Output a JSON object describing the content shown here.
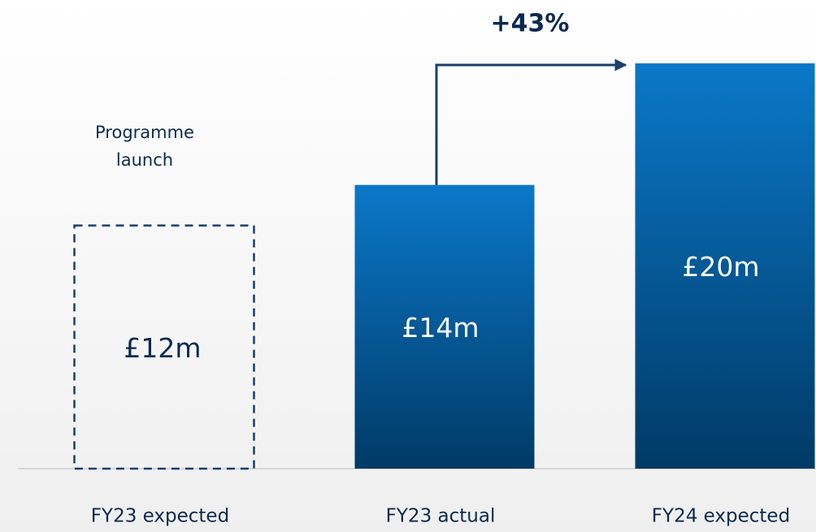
{
  "chart_data": {
    "type": "bar",
    "categories": [
      "FY23 expected",
      "FY23 actual",
      "FY24 expected"
    ],
    "values": [
      12,
      14,
      20
    ],
    "value_labels": [
      "£12m",
      "£14m",
      "£20m"
    ],
    "bar_styles": [
      "dashed",
      "solid",
      "solid"
    ],
    "color": "#0a78c8",
    "annotations": [
      "Programme launch",
      "+43%"
    ]
  }
}
